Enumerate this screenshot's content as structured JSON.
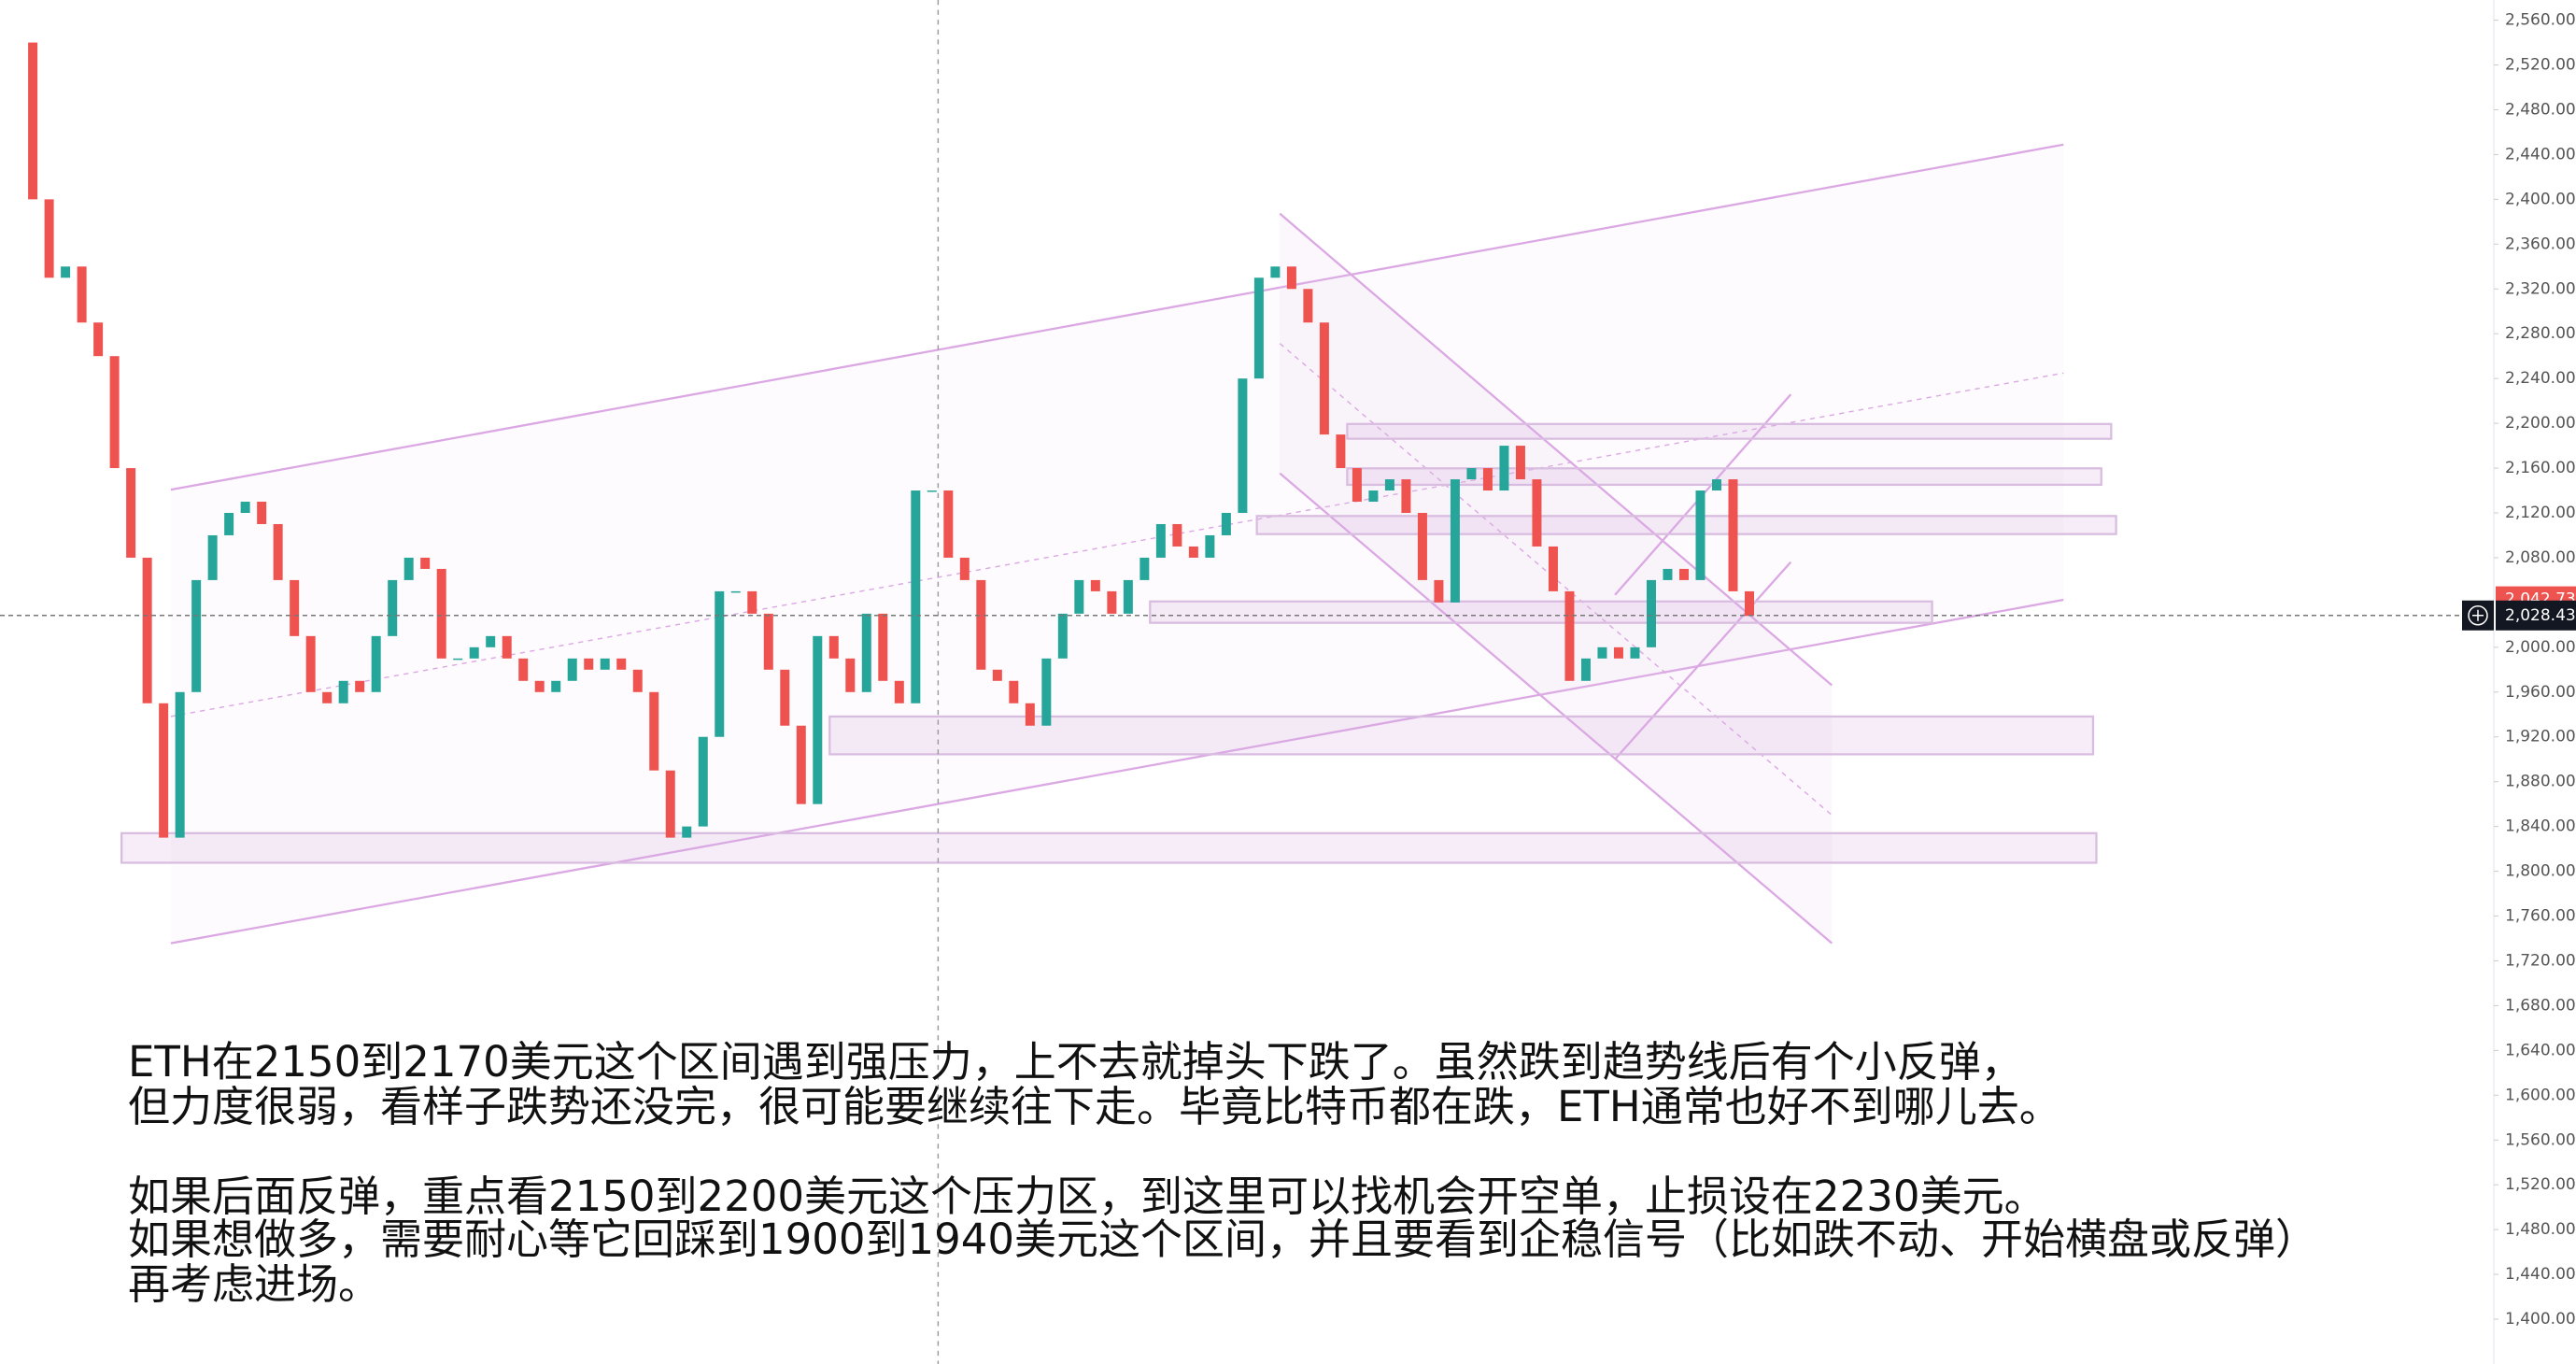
{
  "chart_data": {
    "type": "candlestick",
    "close": [
      2540,
      2400,
      2330,
      2340,
      2290,
      2260,
      2160,
      2080,
      1950,
      1830,
      1960,
      2060,
      2100,
      2120,
      2130,
      2110,
      2060,
      2010,
      1960,
      1950,
      1970,
      1960,
      2010,
      2060,
      2080,
      2070,
      1990,
      1990,
      2000,
      2010,
      1990,
      1970,
      1960,
      1970,
      1990,
      1980,
      1990,
      1980,
      1960,
      1890,
      1830,
      1840,
      1920,
      2050,
      2050,
      2030,
      1980,
      1930,
      1860,
      2010,
      1990,
      1960,
      2030,
      1970,
      1950,
      2140,
      2140,
      2080,
      2060,
      1980,
      1970,
      1950,
      1930,
      1990,
      2030,
      2060,
      2050,
      2030,
      2060,
      2080,
      2110,
      2090,
      2080,
      2100,
      2120,
      2240,
      2330,
      2340,
      2320,
      2290,
      2190,
      2160,
      2130,
      2140,
      2150,
      2120,
      2060,
      2040,
      2150,
      2160,
      2140,
      2180,
      2150,
      2090,
      2050,
      1970,
      1990,
      2000,
      1990,
      2000,
      2060,
      2070,
      2060,
      2140,
      2150,
      2050,
      2028
    ],
    "up_color": "#26a69a",
    "down_color": "#ef5350",
    "ylim": [
      1360,
      2578
    ],
    "yticks": [
      {
        "value": 2560,
        "label": "2,560.00"
      },
      {
        "value": 2520,
        "label": "2,520.00"
      },
      {
        "value": 2480,
        "label": "2,480.00"
      },
      {
        "value": 2440,
        "label": "2,440.00"
      },
      {
        "value": 2400,
        "label": "2,400.00"
      },
      {
        "value": 2360,
        "label": "2,360.00"
      },
      {
        "value": 2320,
        "label": "2,320.00"
      },
      {
        "value": 2280,
        "label": "2,280.00"
      },
      {
        "value": 2240,
        "label": "2,240.00"
      },
      {
        "value": 2200,
        "label": "2,200.00"
      },
      {
        "value": 2160,
        "label": "2,160.00"
      },
      {
        "value": 2120,
        "label": "2,120.00"
      },
      {
        "value": 2080,
        "label": "2,080.00"
      },
      {
        "value": 2000,
        "label": "2,000.00"
      },
      {
        "value": 1960,
        "label": "1,960.00"
      },
      {
        "value": 1920,
        "label": "1,920.00"
      },
      {
        "value": 1880,
        "label": "1,880.00"
      },
      {
        "value": 1840,
        "label": "1,840.00"
      },
      {
        "value": 1800,
        "label": "1,800.00"
      },
      {
        "value": 1760,
        "label": "1,760.00"
      },
      {
        "value": 1720,
        "label": "1,720.00"
      },
      {
        "value": 1680,
        "label": "1,680.00"
      },
      {
        "value": 1640,
        "label": "1,640.00"
      },
      {
        "value": 1600,
        "label": "1,600.00"
      },
      {
        "value": 1560,
        "label": "1,560.00"
      },
      {
        "value": 1520,
        "label": "1,520.00"
      },
      {
        "value": 1480,
        "label": "1,480.00"
      },
      {
        "value": 1440,
        "label": "1,440.00"
      },
      {
        "value": 1400,
        "label": "1,400.00"
      }
    ],
    "mark_price": {
      "value": 2042.73,
      "label": "2,042.73"
    },
    "last_price": {
      "value": 2028.43,
      "label": "2,028.43"
    },
    "annotations": [
      "ETH在2150到2170美元这个区间遇到强压力，上不去就掉头下跌了。虽然跌到趋势线后有个小反弹，",
      "但力度很弱，看样子跌势还没完，很可能要继续往下走。毕竟比特币都在跌，ETH通常也好不到哪儿去。",
      "如果后面反弹，重点看2150到2200美元这个压力区，到这里可以找机会开空单，止损设在2230美元。",
      "如果想做多，需要耐心等它回踩到1900到1940美元这个区间，并且要看到企稳信号（比如跌不动、开始横盘或反弹）",
      "再考虑进场。"
    ]
  }
}
